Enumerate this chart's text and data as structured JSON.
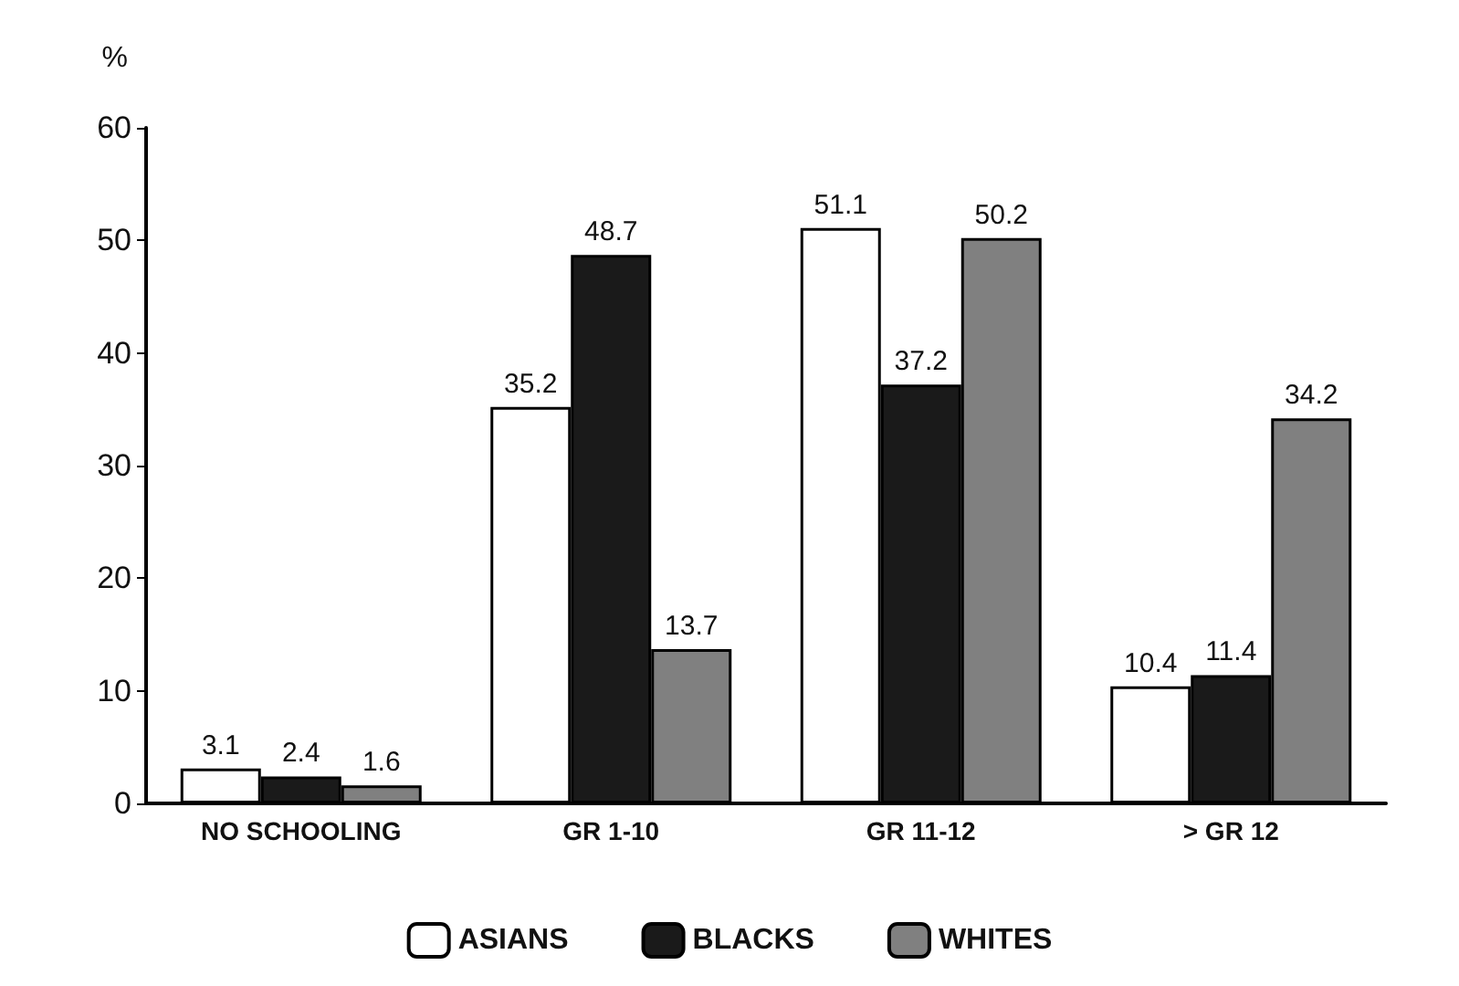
{
  "chart_data": {
    "type": "bar",
    "ylabel": "%",
    "categories": [
      "NO SCHOOLING",
      "GR 1-10",
      "GR 11-12",
      "> GR 12"
    ],
    "series": [
      {
        "name": "ASIANS",
        "color": "#ffffff",
        "values": [
          3.1,
          35.2,
          51.1,
          10.4
        ]
      },
      {
        "name": "BLACKS",
        "color": "#1a1a1a",
        "values": [
          2.4,
          48.7,
          37.2,
          11.4
        ]
      },
      {
        "name": "WHITES",
        "color": "#808080",
        "values": [
          1.6,
          13.7,
          50.2,
          34.2
        ]
      }
    ],
    "ylim": [
      0,
      60
    ],
    "yticks": [
      0,
      10,
      20,
      30,
      40,
      50,
      60
    ],
    "grid": false,
    "legend": "bottom",
    "data_labels": true
  }
}
